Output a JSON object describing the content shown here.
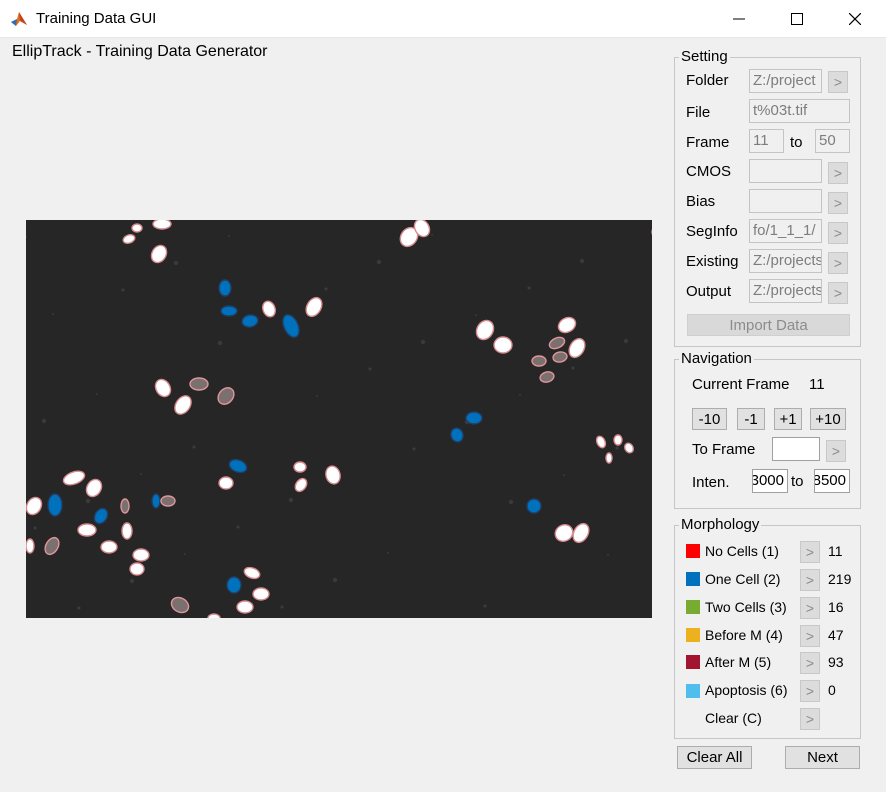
{
  "window": {
    "title": "Training Data GUI"
  },
  "app": {
    "title": "EllipTrack - Training Data Generator"
  },
  "setting": {
    "title": "Setting",
    "folder": {
      "label": "Folder",
      "value": "Z:/project"
    },
    "file": {
      "label": "File",
      "value": "t%03t.tif"
    },
    "frame": {
      "label": "Frame",
      "from": "11",
      "to_label": "to",
      "to": "50"
    },
    "cmos": {
      "label": "CMOS",
      "value": ""
    },
    "bias": {
      "label": "Bias",
      "value": ""
    },
    "seginfo": {
      "label": "SegInfo",
      "value": "fo/1_1_1/"
    },
    "existing": {
      "label": "Existing",
      "value": "Z:/projects"
    },
    "output": {
      "label": "Output",
      "value": "Z:/projects"
    },
    "arrow": ">",
    "import_label": "Import Data"
  },
  "navigation": {
    "title": "Navigation",
    "current_frame_label": "Current Frame",
    "current_frame": "11",
    "step_buttons": [
      "-10",
      "-1",
      "+1",
      "+10"
    ],
    "to_frame_label": "To Frame",
    "to_frame_value": "",
    "inten_label": "Inten.",
    "inten_from": "3000",
    "inten_to_label": "to",
    "inten_to": "8500"
  },
  "morphology": {
    "title": "Morphology",
    "items": [
      {
        "label": "No Cells (1)",
        "count": "11",
        "color": "#ff0000"
      },
      {
        "label": "One Cell (2)",
        "count": "219",
        "color": "#0072bd"
      },
      {
        "label": "Two Cells (3)",
        "count": "16",
        "color": "#77ac30"
      },
      {
        "label": "Before M (4)",
        "count": "47",
        "color": "#edb120"
      },
      {
        "label": "After M (5)",
        "count": "93",
        "color": "#a2142f"
      },
      {
        "label": "Apoptosis (6)",
        "count": "0",
        "color": "#4dbeee"
      }
    ],
    "clear_label": "Clear (C)"
  },
  "buttons": {
    "clear_all": "Clear All",
    "next": "Next"
  }
}
